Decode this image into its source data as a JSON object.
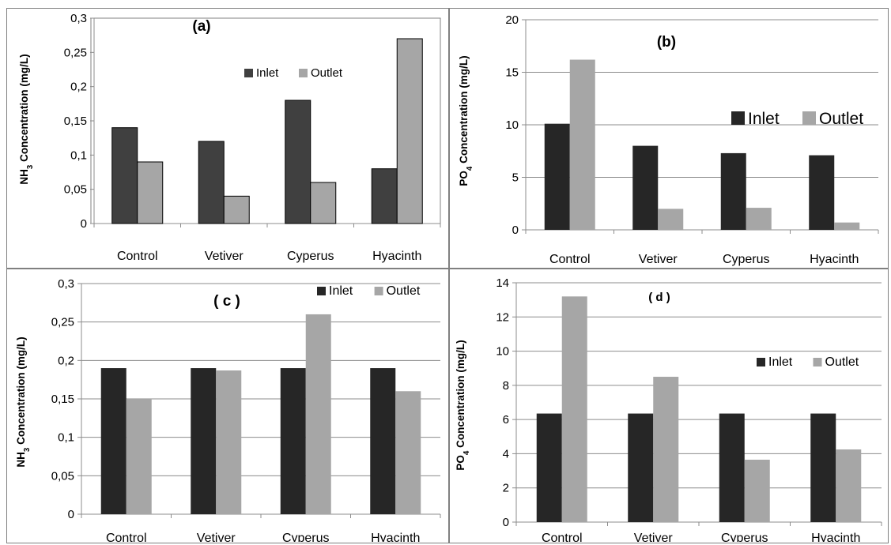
{
  "chart_data": [
    {
      "panel": "a",
      "type": "bar",
      "title": "(a)",
      "ylabel": "NH3 Concentration (mg/L)",
      "ylabel_main": "NH",
      "ylabel_sub": "3",
      "ylabel_rest": " Concentration (mg/L)",
      "categories": [
        "Control",
        "Vetiver",
        "Cyperus",
        "Hyacinth"
      ],
      "ylim": [
        0,
        0.3
      ],
      "yticks": [
        "0",
        "0,05",
        "0,1",
        "0,15",
        "0,2",
        "0,25",
        "0,3"
      ],
      "grid": false,
      "legend_position": "upper-right",
      "series": [
        {
          "name": "Inlet",
          "values": [
            0.14,
            0.12,
            0.18,
            0.08
          ],
          "color": "#404040"
        },
        {
          "name": "Outlet",
          "values": [
            0.09,
            0.04,
            0.06,
            0.27
          ],
          "color": "#a6a6a6"
        }
      ]
    },
    {
      "panel": "b",
      "type": "bar",
      "title": "(b)",
      "ylabel": "PO4 Concentration (mg/L)",
      "ylabel_main": "PO",
      "ylabel_sub": "4",
      "ylabel_rest": " Concentration (mg/L)",
      "categories": [
        "Control",
        "Vetiver",
        "Cyperus",
        "Hyacinth"
      ],
      "ylim": [
        0,
        20
      ],
      "yticks": [
        "0",
        "5",
        "10",
        "15",
        "20"
      ],
      "grid": true,
      "legend_position": "right",
      "series": [
        {
          "name": "Inlet",
          "values": [
            10.1,
            8.0,
            7.3,
            7.1
          ],
          "color": "#262626"
        },
        {
          "name": "Outlet",
          "values": [
            16.2,
            2.0,
            2.1,
            0.7
          ],
          "color": "#a6a6a6"
        }
      ]
    },
    {
      "panel": "c",
      "type": "bar",
      "title": "( c )",
      "ylabel": "NH3 Concentration (mg/L)",
      "ylabel_main": "NH",
      "ylabel_sub": "3",
      "ylabel_rest": " Concentration (mg/L)",
      "categories": [
        "Control",
        "Vetiver",
        "Cyperus",
        "Hyacinth"
      ],
      "ylim": [
        0,
        0.3
      ],
      "yticks": [
        "0",
        "0,05",
        "0,1",
        "0,15",
        "0,2",
        "0,25",
        "0,3"
      ],
      "grid": true,
      "legend_position": "top-right",
      "series": [
        {
          "name": "Inlet",
          "values": [
            0.19,
            0.19,
            0.19,
            0.19
          ],
          "color": "#262626"
        },
        {
          "name": "Outlet",
          "values": [
            0.15,
            0.187,
            0.26,
            0.16
          ],
          "color": "#a6a6a6"
        }
      ]
    },
    {
      "panel": "d",
      "type": "bar",
      "title": "( d )",
      "ylabel": "PO4 Concentration (mg/L)",
      "ylabel_main": "PO",
      "ylabel_sub": "4",
      "ylabel_rest": " Concentration (mg/L)",
      "categories": [
        "Control",
        "Vetiver",
        "Cyperus",
        "Hyacinth"
      ],
      "ylim": [
        0,
        14
      ],
      "yticks": [
        "0",
        "2",
        "4",
        "6",
        "8",
        "10",
        "12",
        "14"
      ],
      "grid": true,
      "legend_position": "right",
      "series": [
        {
          "name": "Inlet",
          "values": [
            6.35,
            6.35,
            6.35,
            6.35
          ],
          "color": "#262626"
        },
        {
          "name": "Outlet",
          "values": [
            13.2,
            8.5,
            3.65,
            4.25
          ],
          "color": "#a6a6a6"
        }
      ]
    }
  ]
}
